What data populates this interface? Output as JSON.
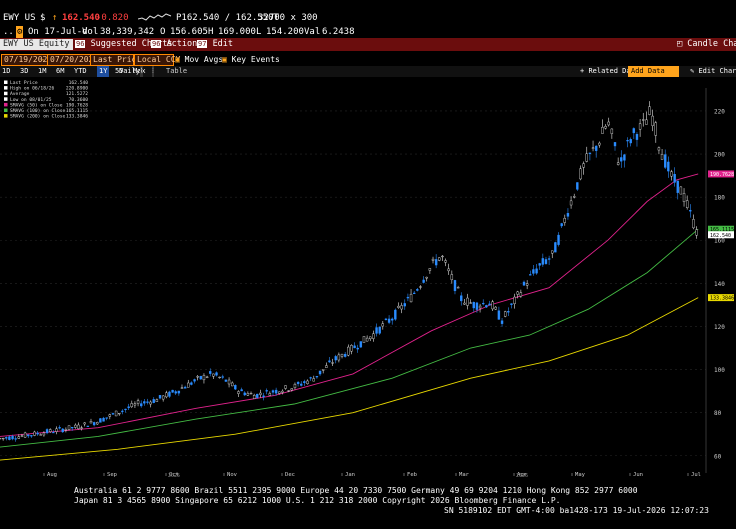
{
  "header": {
    "ticker": "EWY US",
    "currency": "$",
    "trend_icon": "arrow-up-icon",
    "last": "162.540",
    "change": "-0.820",
    "quote": "P162.540 / 162.550T",
    "size": "32700 x 300",
    "date_line": "On 17-Jul-d",
    "vol_label": "Vol",
    "vol": "38,339,342",
    "open_label": "O",
    "open": "156.605",
    "high_label": "H",
    "high": "169.000",
    "low_label": "L",
    "low": "154.200",
    "val_label": "Val",
    "val": "6.2438",
    "security_field": "EWY US Equity",
    "suggested_charts": "Suggested Charts",
    "actions": "Actions",
    "edit": "Edit",
    "candle_chart": "Candle Chart"
  },
  "toolbar": {
    "start_date": "07/19/2025",
    "end_date": "07/20/2026",
    "price_field": "Last Price",
    "currency_field": "Local CCY",
    "mov_avgs": "Mov Avgs",
    "key_events": "Key Events",
    "periods": [
      "1D",
      "3D",
      "1M",
      "6M",
      "YTD",
      "1Y",
      "5Y",
      "Max"
    ],
    "active_period": "1Y",
    "frequency": "Daily",
    "table": "Table",
    "related_data": "Related Data",
    "add_data": "Add Data",
    "edit_chart": "Edit Chart"
  },
  "legend": [
    {
      "label": "Last Price",
      "value": "162.540",
      "color": "#ffffff"
    },
    {
      "label": "High on 06/18/26",
      "value": "220.8900",
      "color": "#ffffff"
    },
    {
      "label": "Average",
      "value": "121.5272",
      "color": "#ffffff"
    },
    {
      "label": "Low on 08/01/25",
      "value": "70.3600",
      "color": "#ffffff"
    },
    {
      "label": "SMAVG (50) on Close",
      "value": "190.7628",
      "color": "#e0228c"
    },
    {
      "label": "SMAVG (100) on Close",
      "value": "165.1115",
      "color": "#44bb44"
    },
    {
      "label": "SMAVG (200) on Close",
      "value": "133.3846",
      "color": "#e8d800"
    }
  ],
  "chart_data": {
    "type": "line",
    "title": "",
    "y_ticks": [
      60,
      80,
      100,
      120,
      140,
      160,
      180,
      200,
      220
    ],
    "ylim": [
      52,
      226
    ],
    "x_tick_labels": [
      "Aug",
      "Sep",
      "Oct",
      "Nov",
      "Dec",
      "Jan",
      "Feb",
      "Mar",
      "Apr",
      "May",
      "Jun",
      "Jul"
    ],
    "year_labels": [
      "2025",
      "2026"
    ],
    "price_points": [
      [
        0,
        68
      ],
      [
        10,
        69
      ],
      [
        20,
        70.4
      ],
      [
        30,
        72
      ],
      [
        40,
        73.5
      ],
      [
        50,
        76
      ],
      [
        60,
        80
      ],
      [
        70,
        84
      ],
      [
        80,
        86
      ],
      [
        90,
        90
      ],
      [
        100,
        95
      ],
      [
        108,
        98
      ],
      [
        115,
        95
      ],
      [
        122,
        90
      ],
      [
        130,
        88
      ],
      [
        140,
        90
      ],
      [
        150,
        92
      ],
      [
        160,
        96
      ],
      [
        170,
        104
      ],
      [
        180,
        110
      ],
      [
        190,
        116
      ],
      [
        200,
        124
      ],
      [
        210,
        134
      ],
      [
        220,
        148
      ],
      [
        225,
        153
      ],
      [
        228,
        147
      ],
      [
        235,
        133
      ],
      [
        242,
        130
      ],
      [
        250,
        131
      ],
      [
        256,
        123
      ],
      [
        260,
        128
      ],
      [
        268,
        140
      ],
      [
        275,
        148
      ],
      [
        282,
        153
      ],
      [
        290,
        175
      ],
      [
        298,
        195
      ],
      [
        305,
        205
      ],
      [
        310,
        215
      ],
      [
        316,
        195
      ],
      [
        322,
        208
      ],
      [
        328,
        213
      ],
      [
        332,
        220
      ],
      [
        336,
        205
      ],
      [
        342,
        190
      ],
      [
        348,
        182
      ],
      [
        352,
        172
      ],
      [
        356,
        162.54
      ]
    ],
    "series": [
      {
        "name": "SMAVG (50) on Close",
        "color": "#e0228c",
        "points": [
          [
            0,
            69
          ],
          [
            50,
            73
          ],
          [
            100,
            82
          ],
          [
            140,
            88
          ],
          [
            180,
            98
          ],
          [
            220,
            118
          ],
          [
            250,
            130
          ],
          [
            280,
            138
          ],
          [
            310,
            160
          ],
          [
            330,
            178
          ],
          [
            345,
            188
          ],
          [
            356,
            190.76
          ]
        ]
      },
      {
        "name": "SMAVG (100) on Close",
        "color": "#44bb44",
        "points": [
          [
            0,
            64
          ],
          [
            50,
            69
          ],
          [
            100,
            77
          ],
          [
            150,
            84
          ],
          [
            200,
            96
          ],
          [
            240,
            110
          ],
          [
            270,
            116
          ],
          [
            300,
            128
          ],
          [
            330,
            145
          ],
          [
            356,
            165.11
          ]
        ]
      },
      {
        "name": "SMAVG (200) on Close",
        "color": "#e8d800",
        "points": [
          [
            0,
            58
          ],
          [
            60,
            63
          ],
          [
            120,
            70
          ],
          [
            180,
            80
          ],
          [
            240,
            96
          ],
          [
            280,
            104
          ],
          [
            320,
            116
          ],
          [
            356,
            133.38
          ]
        ]
      }
    ],
    "last_price_tag": "162.540",
    "sma50_tag": "190.7628",
    "sma100_tag": "165.1115",
    "sma200_tag": "133.3846",
    "high_tag": "220.890"
  },
  "footer": {
    "line1": "Australia 61 2 9777 8600 Brazil 5511 2395 9000 Europe 44 20 7330 7500 Germany 49 69 9204 1210 Hong Kong 852 2977 6000",
    "line2": "Japan 81 3 4565 8900       Singapore 65 6212 1000      U.S. 1 212 318 2000         Copyright 2026 Bloomberg Finance L.P.",
    "line3": "SN 5189102 EDT  GMT-4:00 ba1428-173 19-Jul-2026 12:07:23"
  }
}
